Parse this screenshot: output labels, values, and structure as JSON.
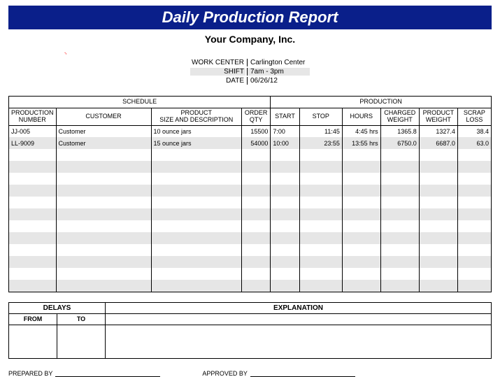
{
  "title": "Daily Production Report",
  "company": "Your Company, Inc.",
  "meta": {
    "work_center_label": "WORK CENTER",
    "work_center_value": "Carlington Center",
    "shift_label": "SHIFT",
    "shift_value": "7am - 3pm",
    "date_label": "DATE",
    "date_value": "06/26/12"
  },
  "groups": {
    "schedule": "SCHEDULE",
    "production": "PRODUCTION"
  },
  "columns": {
    "prod_num": "PRODUCTION\nNUMBER",
    "customer": "CUSTOMER",
    "product": "PRODUCT\nSIZE AND DESCRIPTION",
    "order_qty": "ORDER\nQTY",
    "start": "START",
    "stop": "STOP",
    "hours": "HOURS",
    "charged": "CHARGED\nWEIGHT",
    "product_wt": "PRODUCT\nWEIGHT",
    "scrap": "SCRAP\nLOSS"
  },
  "rows": [
    {
      "prod_num": "JJ-005",
      "customer": "Customer",
      "product": "10 ounce jars",
      "order_qty": "15500",
      "start": "7:00",
      "stop": "11:45",
      "hours": "4:45 hrs",
      "charged": "1365.8",
      "product_wt": "1327.4",
      "scrap": "38.4"
    },
    {
      "prod_num": "LL-9009",
      "customer": "Customer",
      "product": "15 ounce jars",
      "order_qty": "54000",
      "start": "10:00",
      "stop": "23:55",
      "hours": "13:55 hrs",
      "charged": "6750.0",
      "product_wt": "6687.0",
      "scrap": "63.0"
    }
  ],
  "delays": {
    "group": "DELAYS",
    "explanation": "EXPLANATION",
    "from": "FROM",
    "to": "TO"
  },
  "footer": {
    "prepared": "PREPARED BY",
    "approved": "APPROVED BY"
  },
  "style": {
    "title_bg": "#0a1f8a",
    "title_color": "#ffffff",
    "stripe_color": "#e6e6e6",
    "border_color": "#000000",
    "widths_pct": [
      8,
      20,
      19,
      6,
      6,
      9,
      8,
      8,
      8,
      7
    ],
    "empty_rows": 12,
    "delays_empty_rows": 3
  }
}
